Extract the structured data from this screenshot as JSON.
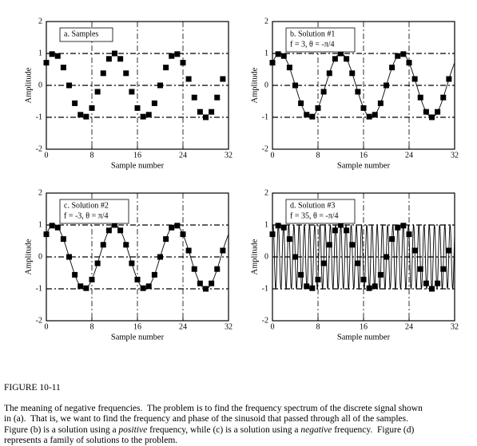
{
  "chart_data": [
    {
      "type": "scatter",
      "annotation": [
        "a.  Samples"
      ],
      "x_label": "Sample number",
      "y_label": "Amplitude",
      "x": [
        0,
        1,
        2,
        3,
        4,
        5,
        6,
        7,
        8,
        9,
        10,
        11,
        12,
        13,
        14,
        15,
        16,
        17,
        18,
        19,
        20,
        21,
        22,
        23,
        24,
        25,
        26,
        27,
        28,
        29,
        30,
        31
      ],
      "values": [
        0.71,
        0.98,
        0.92,
        0.56,
        0.0,
        -0.56,
        -0.92,
        -0.98,
        -0.71,
        -0.2,
        0.38,
        0.83,
        1.0,
        0.83,
        0.38,
        -0.2,
        -0.71,
        -0.98,
        -0.92,
        -0.56,
        0.0,
        0.56,
        0.92,
        0.98,
        0.71,
        0.2,
        -0.38,
        -0.83,
        -1.0,
        -0.83,
        -0.38,
        0.2
      ],
      "color": "#000000",
      "xlim": [
        0,
        32
      ],
      "ylim": [
        -2,
        2
      ],
      "xticks": [
        0,
        8,
        16,
        24,
        32
      ],
      "yticks": [
        -2,
        -1,
        0,
        1,
        2
      ],
      "grid": true
    },
    {
      "type": "scatter",
      "annotation": [
        "b.  Solution #1",
        "f = 3, θ = -π/4"
      ],
      "x_label": "Sample number",
      "y_label": "Amplitude",
      "x": [
        0,
        1,
        2,
        3,
        4,
        5,
        6,
        7,
        8,
        9,
        10,
        11,
        12,
        13,
        14,
        15,
        16,
        17,
        18,
        19,
        20,
        21,
        22,
        23,
        24,
        25,
        26,
        27,
        28,
        29,
        30,
        31
      ],
      "values": [
        0.71,
        0.98,
        0.92,
        0.56,
        0.0,
        -0.56,
        -0.92,
        -0.98,
        -0.71,
        -0.2,
        0.38,
        0.83,
        1.0,
        0.83,
        0.38,
        -0.2,
        -0.71,
        -0.98,
        -0.92,
        -0.56,
        0.0,
        0.56,
        0.92,
        0.98,
        0.71,
        0.2,
        -0.38,
        -0.83,
        -1.0,
        -0.83,
        -0.38,
        0.2
      ],
      "curve": {
        "frequency": 3,
        "phase": -0.785398
      },
      "color": "#000000",
      "xlim": [
        0,
        32
      ],
      "ylim": [
        -2,
        2
      ],
      "xticks": [
        0,
        8,
        16,
        24,
        32
      ],
      "yticks": [
        -2,
        -1,
        0,
        1,
        2
      ],
      "grid": true
    },
    {
      "type": "scatter",
      "annotation": [
        "c.  Solution #2",
        "f = -3, θ = π/4"
      ],
      "x_label": "Sample number",
      "y_label": "Amplitude",
      "x": [
        0,
        1,
        2,
        3,
        4,
        5,
        6,
        7,
        8,
        9,
        10,
        11,
        12,
        13,
        14,
        15,
        16,
        17,
        18,
        19,
        20,
        21,
        22,
        23,
        24,
        25,
        26,
        27,
        28,
        29,
        30,
        31
      ],
      "values": [
        0.71,
        0.98,
        0.92,
        0.56,
        0.0,
        -0.56,
        -0.92,
        -0.98,
        -0.71,
        -0.2,
        0.38,
        0.83,
        1.0,
        0.83,
        0.38,
        -0.2,
        -0.71,
        -0.98,
        -0.92,
        -0.56,
        0.0,
        0.56,
        0.92,
        0.98,
        0.71,
        0.2,
        -0.38,
        -0.83,
        -1.0,
        -0.83,
        -0.38,
        0.2
      ],
      "curve": {
        "frequency": -3,
        "phase": 0.785398
      },
      "color": "#000000",
      "xlim": [
        0,
        32
      ],
      "ylim": [
        -2,
        2
      ],
      "xticks": [
        0,
        8,
        16,
        24,
        32
      ],
      "yticks": [
        -2,
        -1,
        0,
        1,
        2
      ],
      "grid": true
    },
    {
      "type": "scatter",
      "annotation": [
        "d.  Solution #3",
        "f = 35, θ = -π/4"
      ],
      "x_label": "Sample number",
      "y_label": "Amplitude",
      "x": [
        0,
        1,
        2,
        3,
        4,
        5,
        6,
        7,
        8,
        9,
        10,
        11,
        12,
        13,
        14,
        15,
        16,
        17,
        18,
        19,
        20,
        21,
        22,
        23,
        24,
        25,
        26,
        27,
        28,
        29,
        30,
        31
      ],
      "values": [
        0.71,
        0.98,
        0.92,
        0.56,
        0.0,
        -0.56,
        -0.92,
        -0.98,
        -0.71,
        -0.2,
        0.38,
        0.83,
        1.0,
        0.83,
        0.38,
        -0.2,
        -0.71,
        -0.98,
        -0.92,
        -0.56,
        0.0,
        0.56,
        0.92,
        0.98,
        0.71,
        0.2,
        -0.38,
        -0.83,
        -1.0,
        -0.83,
        -0.38,
        0.2
      ],
      "curve": {
        "frequency": 35,
        "phase": -0.785398
      },
      "color": "#000000",
      "xlim": [
        0,
        32
      ],
      "ylim": [
        -2,
        2
      ],
      "xticks": [
        0,
        8,
        16,
        24,
        32
      ],
      "yticks": [
        -2,
        -1,
        0,
        1,
        2
      ],
      "grid": true
    }
  ],
  "caption": {
    "title": "FIGURE 10-11",
    "lines": [
      [
        "The meaning of negative frequencies.  The problem is to find the frequency spectrum of the discrete signal shown"
      ],
      [
        "in (a).  That is, we want to find the frequency and phase of the sinusoid that passed through all of the samples."
      ],
      [
        "Figure (b) is a solution using a ",
        "positive",
        " frequency, while (c) is a solution using a ",
        "negative",
        " frequency.  Figure (d)"
      ],
      [
        "represents a family of solutions to the problem."
      ]
    ]
  }
}
